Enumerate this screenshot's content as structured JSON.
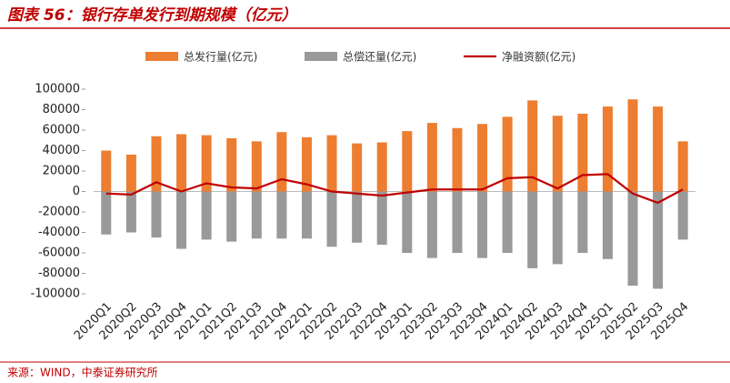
{
  "chart_data": {
    "type": "bar_line",
    "title": "图表 56：银行存单发行到期规模（亿元）",
    "source": "来源：WIND，中泰证券研究所",
    "categories": [
      "2020Q1",
      "2020Q2",
      "2020Q3",
      "2020Q4",
      "2021Q1",
      "2021Q2",
      "2021Q3",
      "2021Q4",
      "2022Q1",
      "2022Q2",
      "2022Q3",
      "2022Q4",
      "2023Q1",
      "2023Q2",
      "2023Q3",
      "2023Q4",
      "2024Q1",
      "2024Q2",
      "2024Q3",
      "2024Q4",
      "2025Q1",
      "2025Q2",
      "2025Q3",
      "2025Q4"
    ],
    "series": [
      {
        "name": "总发行量(亿元)",
        "color": "#ed7d31",
        "kind": "bar",
        "values": [
          40000,
          36000,
          54000,
          56000,
          55000,
          52000,
          49000,
          58000,
          53000,
          55000,
          47000,
          48000,
          59000,
          67000,
          62000,
          66000,
          73000,
          89000,
          74000,
          76000,
          83000,
          90000,
          83000,
          49000
        ]
      },
      {
        "name": "总偿还量(亿元)",
        "color": "#999999",
        "kind": "bar",
        "values": [
          -42000,
          -40000,
          -45000,
          -56000,
          -47000,
          -49000,
          -46000,
          -46000,
          -46000,
          -54000,
          -50000,
          -52000,
          -60000,
          -65000,
          -60000,
          -65000,
          -60000,
          -75000,
          -71000,
          -60000,
          -66000,
          -92000,
          -95000,
          -47000
        ]
      },
      {
        "name": "净融资额(亿元)",
        "color": "#c00000",
        "kind": "line",
        "values": [
          -2000,
          -3000,
          9000,
          0,
          8000,
          4000,
          3000,
          12000,
          7000,
          0,
          -2000,
          -4000,
          -1000,
          2000,
          2000,
          2000,
          13000,
          14000,
          3000,
          16000,
          17000,
          -2000,
          -11000,
          2000
        ]
      }
    ],
    "ylim": [
      -100000,
      100000
    ],
    "yticks": [
      -100000,
      -80000,
      -60000,
      -40000,
      -20000,
      0,
      20000,
      40000,
      60000,
      80000,
      100000
    ]
  }
}
